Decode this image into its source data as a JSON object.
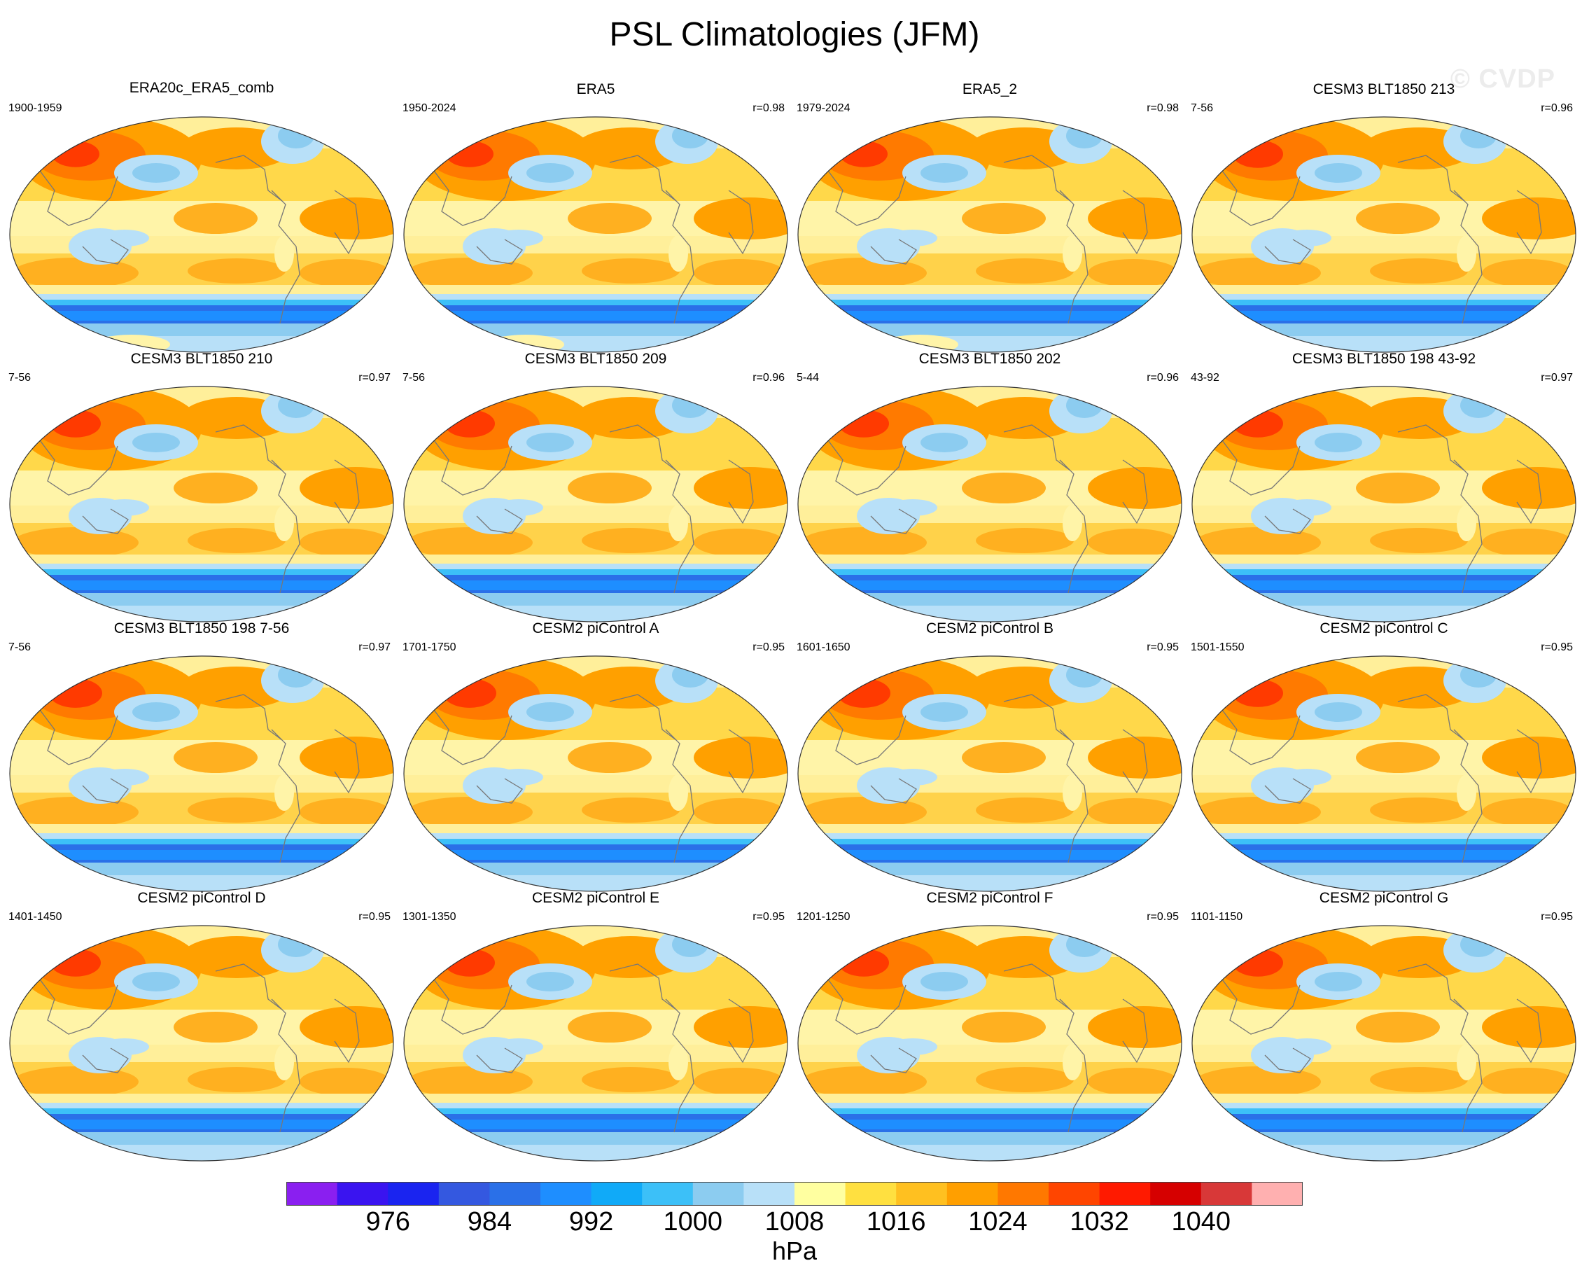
{
  "figure": {
    "title": "PSL Climatologies (JFM)",
    "watermark": "© CVDP",
    "units": "hPa"
  },
  "colorbar": {
    "colors": [
      "#8a1ff0",
      "#3a14f0",
      "#1a24f0",
      "#3458e0",
      "#2a70e8",
      "#1e8eff",
      "#10aaf8",
      "#3cc0f8",
      "#8cccf0",
      "#b8e0f8",
      "#ffffa0",
      "#ffe040",
      "#ffc020",
      "#ff9f00",
      "#ff7800",
      "#ff4500",
      "#ff1a00",
      "#d60000",
      "#d83838",
      "#ffb0b0"
    ],
    "tick_labels": [
      "976",
      "984",
      "992",
      "1000",
      "1008",
      "1016",
      "1024",
      "1032",
      "1040"
    ]
  },
  "chart_data": {
    "type": "map",
    "variable": "PSL",
    "season": "JFM",
    "units": "hPa",
    "levels": [
      972,
      976,
      980,
      984,
      988,
      992,
      996,
      1000,
      1004,
      1008,
      1012,
      1016,
      1020,
      1024,
      1028,
      1032,
      1036,
      1040,
      1044
    ],
    "panels": [
      {
        "title": "ERA20c_ERA5_comb",
        "years": "1900-1959",
        "corr": "",
        "high": 0.85,
        "south_low": true
      },
      {
        "title": "ERA5",
        "years": "1950-2024",
        "corr": "r=0.98",
        "high": 0.85,
        "south_low": true
      },
      {
        "title": "ERA5_2",
        "years": "1979-2024",
        "corr": "r=0.98",
        "high": 0.85,
        "south_low": true
      },
      {
        "title": "CESM3 BLT1850 213",
        "years": "7-56",
        "corr": "r=0.96",
        "high": 0.9,
        "south_low": false
      },
      {
        "title": "CESM3 BLT1850 210",
        "years": "7-56",
        "corr": "r=0.97",
        "high": 0.9,
        "south_low": false
      },
      {
        "title": "CESM3 BLT1850 209",
        "years": "7-56",
        "corr": "r=0.96",
        "high": 0.9,
        "south_low": false
      },
      {
        "title": "CESM3 BLT1850 202",
        "years": "5-44",
        "corr": "r=0.96",
        "high": 0.9,
        "south_low": false
      },
      {
        "title": "CESM3 BLT1850 198 43-92",
        "years": "43-92",
        "corr": "r=0.97",
        "high": 0.9,
        "south_low": false
      },
      {
        "title": "CESM3 BLT1850 198 7-56",
        "years": "7-56",
        "corr": "r=0.97",
        "high": 0.95,
        "south_low": false
      },
      {
        "title": "CESM2 piControl A",
        "years": "1701-1750",
        "corr": "r=0.95",
        "high": 0.95,
        "south_low": false
      },
      {
        "title": "CESM2 piControl B",
        "years": "1601-1650",
        "corr": "r=0.95",
        "high": 0.95,
        "south_low": false
      },
      {
        "title": "CESM2 piControl C",
        "years": "1501-1550",
        "corr": "r=0.95",
        "high": 0.9,
        "south_low": false
      },
      {
        "title": "CESM2 piControl D",
        "years": "1401-1450",
        "corr": "r=0.95",
        "high": 0.9,
        "south_low": false
      },
      {
        "title": "CESM2 piControl E",
        "years": "1301-1350",
        "corr": "r=0.95",
        "high": 0.9,
        "south_low": false
      },
      {
        "title": "CESM2 piControl F",
        "years": "1201-1250",
        "corr": "r=0.95",
        "high": 0.9,
        "south_low": false
      },
      {
        "title": "CESM2 piControl G",
        "years": "1101-1150",
        "corr": "r=0.95",
        "high": 0.9,
        "south_low": false
      }
    ]
  }
}
